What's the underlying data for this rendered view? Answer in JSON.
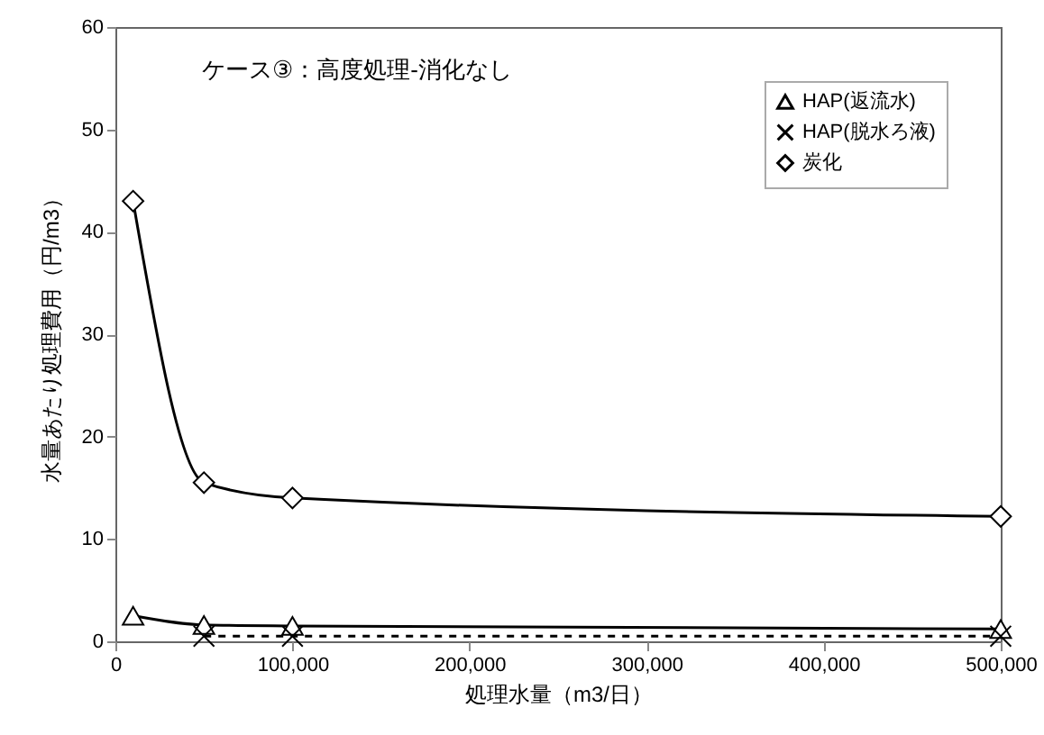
{
  "chart_data": {
    "type": "line",
    "xlabel": "処理水量（m3/日）",
    "ylabel": "水量あたり処理費用（円/m3）",
    "annotations": [
      "ケース③：高度処理-消化なし"
    ],
    "xlim": [
      0,
      500000
    ],
    "xticks": [
      {
        "value": 0,
        "label": "0"
      },
      {
        "value": 100000,
        "label": "100,000"
      },
      {
        "value": 200000,
        "label": "200,000"
      },
      {
        "value": 300000,
        "label": "300,000"
      },
      {
        "value": 400000,
        "label": "400,000"
      },
      {
        "value": 500000,
        "label": "500,000"
      }
    ],
    "ylim": [
      0,
      60
    ],
    "yticks": [
      0,
      10,
      20,
      30,
      40,
      50,
      60
    ],
    "grid": false,
    "legend": "top right",
    "series": [
      {
        "name": "HAP(返流水)",
        "color": "#000000",
        "marker": "triangle",
        "line_style": "solid",
        "x": [
          10000,
          50000,
          100000,
          500000
        ],
        "values": [
          2.5,
          1.6,
          1.5,
          1.2
        ]
      },
      {
        "name": "HAP(脱水ろ液)",
        "color": "#000000",
        "marker": "cross",
        "line_style": "dashed",
        "x": [
          50000,
          100000,
          500000
        ],
        "values": [
          0.5,
          0.5,
          0.5
        ]
      },
      {
        "name": "炭化",
        "color": "#000000",
        "marker": "diamond",
        "line_style": "solid",
        "x": [
          10000,
          50000,
          100000,
          500000
        ],
        "values": [
          43,
          15.5,
          14,
          12.2
        ]
      }
    ]
  }
}
